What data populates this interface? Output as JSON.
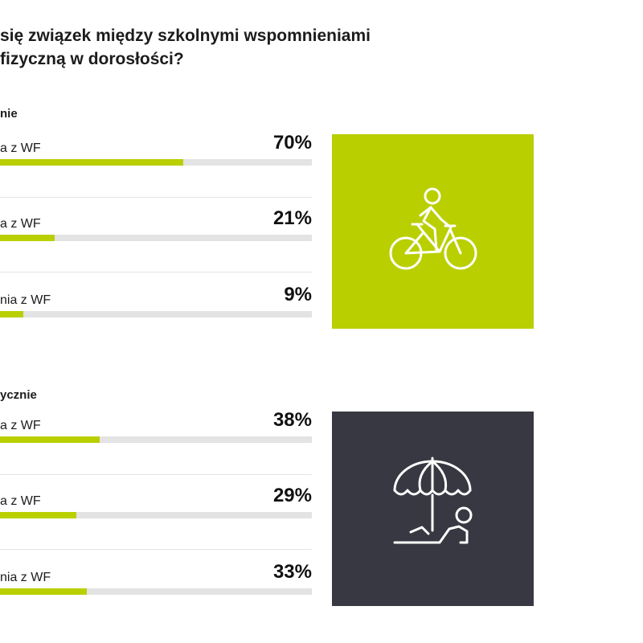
{
  "title": {
    "line1": "się związek między szkolnymi wspomnieniami",
    "line2": "fizyczną w dorosłości?"
  },
  "colors": {
    "accent": "#b9cf00",
    "track": "#e3e3e3",
    "dark_panel": "#383842",
    "icon_stroke": "#ffffff"
  },
  "groups": [
    {
      "label": "nie",
      "icon": "bicycle-rider-icon",
      "panel_color": "#b9cf00",
      "rows": [
        {
          "label": "a z WF",
          "percent": "70%",
          "value": 70
        },
        {
          "label": "a z WF",
          "percent": "21%",
          "value": 21
        },
        {
          "label": "nia z WF",
          "percent": "9%",
          "value": 9
        }
      ]
    },
    {
      "label": "ycznie",
      "icon": "person-lounging-under-umbrella-icon",
      "panel_color": "#383842",
      "rows": [
        {
          "label": "a z WF",
          "percent": "38%",
          "value": 38
        },
        {
          "label": "a z WF",
          "percent": "29%",
          "value": 29
        },
        {
          "label": "nia z WF",
          "percent": "33%",
          "value": 33
        }
      ]
    }
  ],
  "chart_data": [
    {
      "type": "bar",
      "title": "nie",
      "categories": [
        "a z WF",
        "a z WF",
        "nia z WF"
      ],
      "values": [
        70,
        21,
        9
      ],
      "ylim": [
        0,
        100
      ]
    },
    {
      "type": "bar",
      "title": "ycznie",
      "categories": [
        "a z WF",
        "a z WF",
        "nia z WF"
      ],
      "values": [
        38,
        29,
        33
      ],
      "ylim": [
        0,
        100
      ]
    }
  ]
}
